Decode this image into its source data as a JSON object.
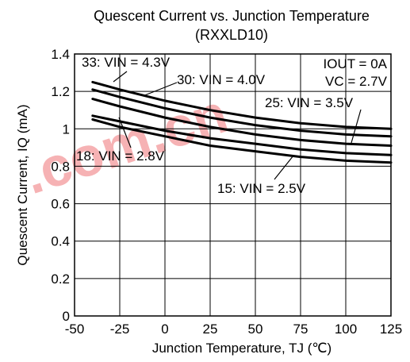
{
  "chart_data": {
    "type": "line",
    "title": "Quescent Current vs. Junction Temperature",
    "subtitle": "(RXXLD10)",
    "xlabel": "Junction Temperature, TJ (℃)",
    "ylabel": "Quescent Current, IQ (mA)",
    "xlim": [
      -50,
      125
    ],
    "ylim": [
      0,
      1.4
    ],
    "x_ticks": [
      "-50",
      "-25",
      "0",
      "25",
      "50",
      "75",
      "100",
      "125"
    ],
    "y_ticks": [
      "0",
      "0.2",
      "0.4",
      "0.6",
      "0.8",
      "1",
      "1.2",
      "1.4"
    ],
    "grid": true,
    "conditions": [
      "IOUT = 0A",
      "VC = 2.7V"
    ],
    "series": [
      {
        "name": "33: VIN = 4.3V",
        "x": [
          -40,
          -25,
          0,
          25,
          50,
          75,
          100,
          125
        ],
        "y": [
          1.25,
          1.21,
          1.15,
          1.1,
          1.06,
          1.03,
          1.01,
          1.0
        ]
      },
      {
        "name": "30: VIN = 4.0V",
        "x": [
          -40,
          -25,
          0,
          25,
          50,
          75,
          100,
          125
        ],
        "y": [
          1.21,
          1.17,
          1.11,
          1.06,
          1.02,
          0.99,
          0.97,
          0.96
        ]
      },
      {
        "name": "25: VIN = 3.5V",
        "x": [
          -40,
          -25,
          0,
          25,
          50,
          75,
          100,
          125
        ],
        "y": [
          1.16,
          1.12,
          1.06,
          1.01,
          0.97,
          0.94,
          0.92,
          0.91
        ]
      },
      {
        "name": "18: VIN = 2.8V",
        "x": [
          -40,
          -25,
          0,
          25,
          50,
          75,
          100,
          125
        ],
        "y": [
          1.07,
          1.04,
          0.99,
          0.95,
          0.92,
          0.89,
          0.87,
          0.86
        ]
      },
      {
        "name": "15: VIN = 2.5V",
        "x": [
          -40,
          -25,
          0,
          25,
          50,
          75,
          100,
          125
        ],
        "y": [
          1.05,
          1.01,
          0.96,
          0.91,
          0.88,
          0.85,
          0.83,
          0.82
        ]
      }
    ]
  },
  "watermark": ".com.cn"
}
